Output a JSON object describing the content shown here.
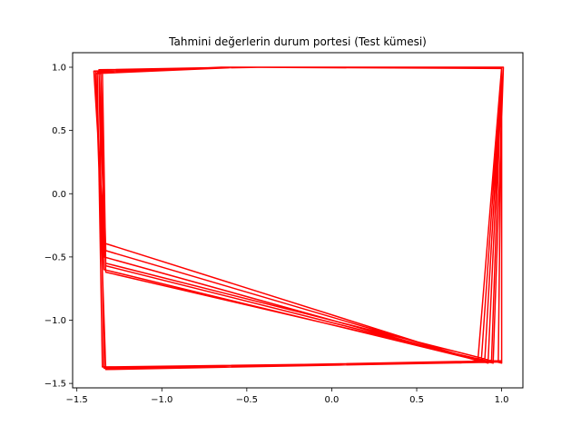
{
  "chart_data": {
    "type": "line",
    "title": "Tahmini değerlerin durum portesi (Test kümesi)",
    "xlabel": "",
    "ylabel": "",
    "xlim": [
      -1.525,
      1.125
    ],
    "ylim": [
      -1.535,
      1.115
    ],
    "xticks": [
      -1.5,
      -1.0,
      -0.5,
      0.0,
      0.5,
      1.0
    ],
    "xtick_labels": [
      "−1.5",
      "−1.0",
      "−0.5",
      "0.0",
      "0.5",
      "1.0"
    ],
    "yticks": [
      -1.5,
      -1.0,
      -0.5,
      0.0,
      0.5,
      1.0
    ],
    "ytick_labels": [
      "−1.5",
      "−1.0",
      "−0.5",
      "0.0",
      "0.5",
      "1.0"
    ],
    "grid": false,
    "line_color": "#ff0000",
    "series": [
      {
        "x": [
          1.0,
          1.0,
          -1.33,
          -1.39,
          -0.6,
          1.0,
          1.0,
          -1.34,
          -1.37,
          -0.57,
          1.0,
          0.98,
          -1.35,
          -1.38,
          -0.55,
          1.01,
          0.95,
          -1.33,
          -1.35,
          -0.62,
          1.0,
          0.88,
          -1.34,
          -1.36,
          -0.4,
          1.0,
          0.92,
          -1.33,
          -1.36,
          -0.58,
          1.0,
          0.9,
          -1.34,
          -1.39,
          -0.53,
          1.0,
          1.0,
          -1.33,
          -1.4,
          -0.6,
          1.0,
          0.86,
          -1.34,
          -1.36,
          -0.56,
          1.0,
          0.94,
          -1.33,
          -1.37,
          -0.65,
          1.0,
          1.0,
          -1.34
        ],
        "y": [
          1.0,
          -1.33,
          -1.39,
          0.97,
          1.0,
          1.0,
          -1.32,
          -1.38,
          0.98,
          1.0,
          1.0,
          -1.33,
          -1.37,
          0.96,
          1.0,
          1.0,
          -1.34,
          -0.57,
          0.97,
          1.0,
          1.0,
          -1.33,
          -0.39,
          0.98,
          1.0,
          1.0,
          -1.34,
          -0.45,
          0.96,
          1.0,
          1.0,
          -1.33,
          -0.6,
          0.95,
          1.0,
          0.99,
          -1.34,
          -0.55,
          0.97,
          1.0,
          1.0,
          -1.32,
          -0.5,
          0.98,
          1.0,
          1.0,
          -1.33,
          -0.62,
          0.96,
          1.0,
          1.0,
          -1.33,
          -1.38
        ]
      }
    ]
  }
}
